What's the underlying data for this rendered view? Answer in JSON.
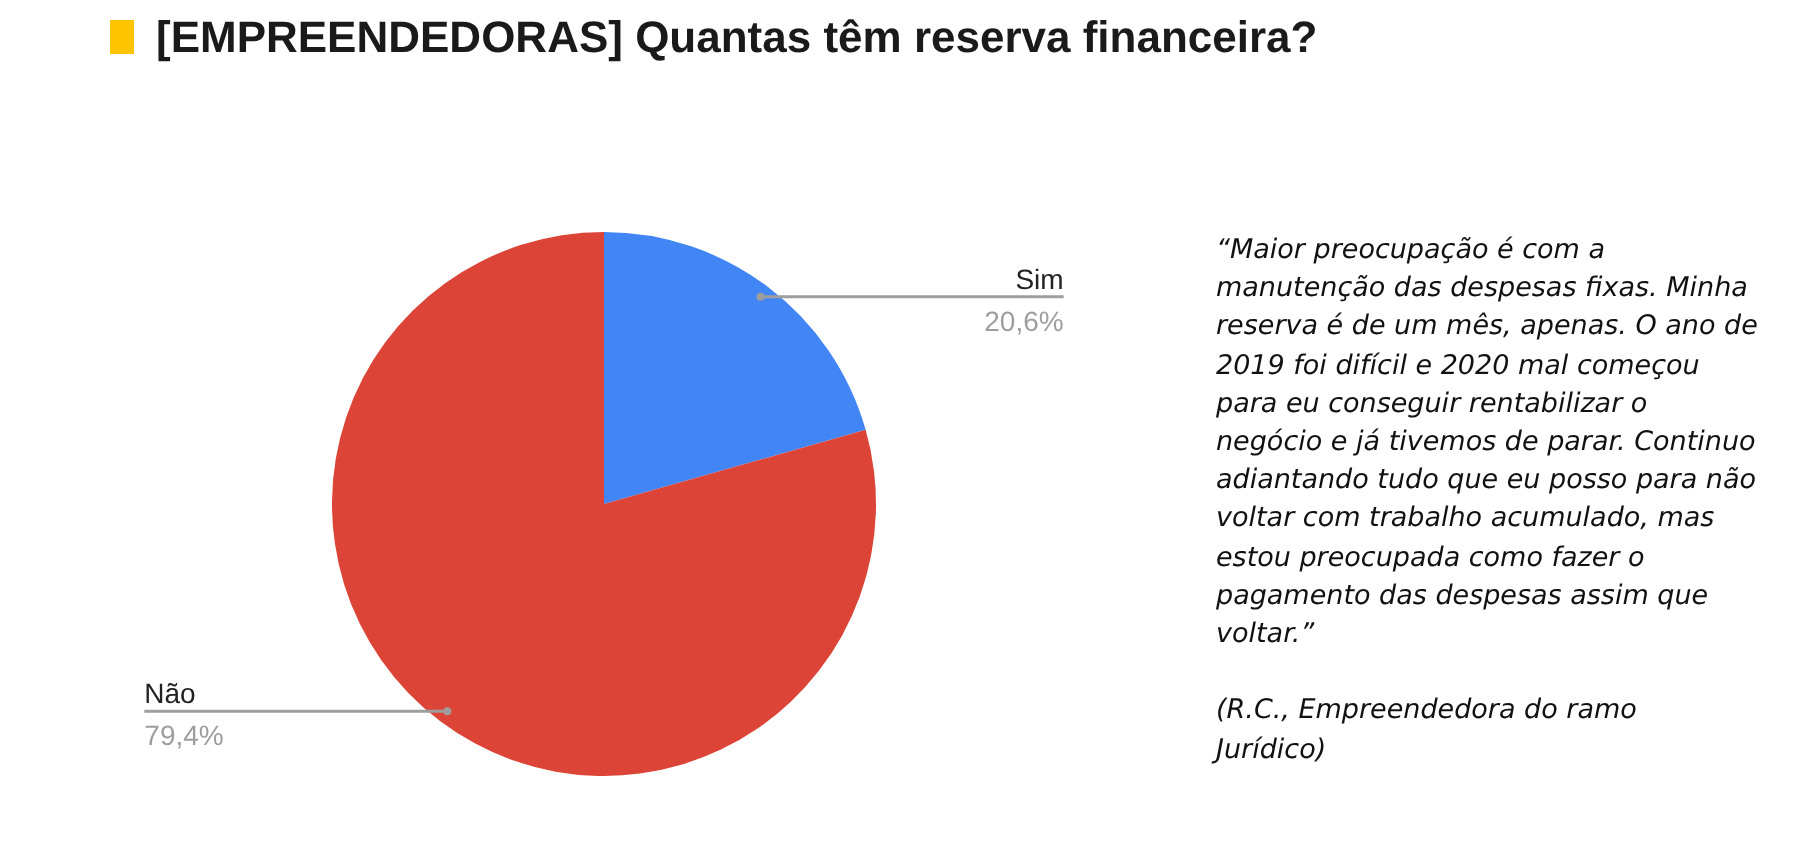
{
  "chart_data": {
    "type": "pie",
    "title": "[EMPREENDEDORAS] Quantas têm reserva financeira?",
    "categories": [
      "Sim",
      "Não"
    ],
    "values": [
      20.6,
      79.4
    ],
    "colors": [
      "#4285f4",
      "#db4437"
    ],
    "value_labels": [
      "20,6%",
      "79,4%"
    ],
    "legend": false,
    "annotations": [
      "“Maior preocupação é com a manutenção das despesas fixas. Minha reserva é de um mês, apenas. O ano de 2019 foi difícil e 2020 mal começou para eu conseguir rentabilizar o negócio e já tivemos de parar. Continuo adiantando tudo que eu posso para não voltar com trabalho acumulado, mas estou preocupada como fazer o pagamento das despesas assim que voltar.”",
      "(R.C., Empreendedora do ramo Jurídico)"
    ]
  }
}
